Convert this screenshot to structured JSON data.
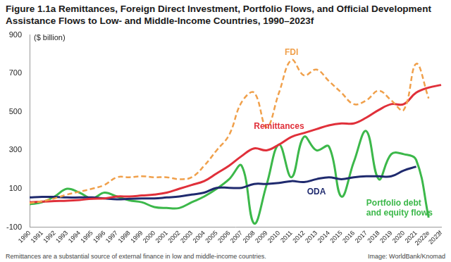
{
  "chart_data": {
    "type": "line",
    "title": "Figure 1.1a Remittances, Foreign Direct Investment, Portfolio Flows, and Official Development Assistance Flows to Low- and Middle-Income Countries, 1990–2023f",
    "y_label": "($ billion)",
    "footnote": "Remittances are a substantial source of external finance in low and middle-income countries.",
    "source": "Image: WorldBank/Knomad",
    "categories": [
      "1990",
      "1991",
      "1992",
      "1993",
      "1994",
      "1995",
      "1996",
      "1997",
      "1998",
      "1999",
      "2000",
      "2001",
      "2002",
      "2003",
      "2004",
      "2005",
      "2006",
      "2007",
      "2008",
      "2009",
      "2010",
      "2011",
      "2012",
      "2013",
      "2014",
      "2015",
      "2016",
      "2017",
      "2018",
      "2019",
      "2020",
      "2021",
      "2022e",
      "2023f"
    ],
    "series": [
      {
        "name": "FDI",
        "color": "#f0a04b",
        "line_style": "dashed",
        "values": [
          25,
          35,
          50,
          70,
          85,
          100,
          120,
          160,
          160,
          165,
          160,
          160,
          150,
          160,
          220,
          300,
          380,
          550,
          600,
          420,
          600,
          770,
          690,
          720,
          660,
          600,
          540,
          560,
          610,
          560,
          510,
          750,
          570,
          null
        ]
      },
      {
        "name": "Remittances",
        "color": "#e0303a",
        "line_style": "solid",
        "values": [
          30,
          33,
          36,
          38,
          42,
          48,
          50,
          60,
          60,
          65,
          70,
          80,
          100,
          120,
          140,
          180,
          220,
          270,
          310,
          300,
          330,
          370,
          390,
          410,
          430,
          440,
          440,
          470,
          510,
          540,
          540,
          600,
          626,
          640
        ]
      },
      {
        "name": "ODA",
        "color": "#1f2a6e",
        "line_style": "solid",
        "values": [
          55,
          58,
          58,
          55,
          55,
          55,
          50,
          45,
          48,
          50,
          50,
          55,
          60,
          70,
          80,
          105,
          105,
          105,
          125,
          125,
          130,
          140,
          135,
          150,
          160,
          150,
          160,
          165,
          165,
          165,
          195,
          215,
          null,
          null
        ]
      },
      {
        "name": "Portfolio debt and equity flows",
        "color": "#3cb84a",
        "line_style": "solid",
        "values": [
          20,
          30,
          60,
          100,
          80,
          50,
          80,
          60,
          40,
          30,
          5,
          0,
          0,
          30,
          60,
          100,
          150,
          220,
          -80,
          120,
          330,
          160,
          370,
          300,
          320,
          60,
          240,
          400,
          150,
          280,
          280,
          250,
          -50,
          null
        ]
      }
    ],
    "ylim": [
      -100,
      900
    ],
    "yticks": [
      -100,
      100,
      300,
      500,
      700,
      900
    ],
    "grid": false
  }
}
